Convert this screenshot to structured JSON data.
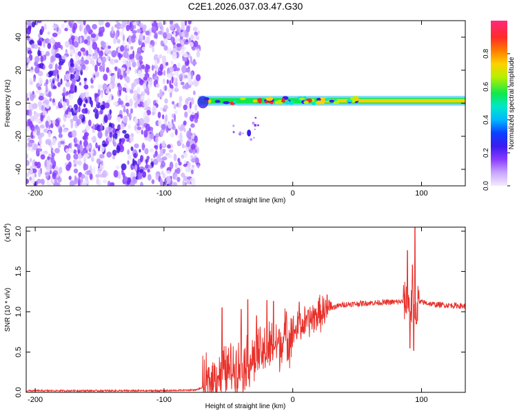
{
  "title": "C2E1.2026.037.03.47.G30",
  "chart_data": [
    {
      "type": "heatmap",
      "name": "spectrogram",
      "xlabel": "Height of straight line (km)",
      "ylabel": "Frequency (Hz)",
      "xlim": [
        -207,
        134
      ],
      "ylim": [
        -50,
        50
      ],
      "xticks": [
        -200,
        -100,
        0,
        100
      ],
      "xtick_labels": [
        "-200",
        "-100",
        "0",
        "100"
      ],
      "yticks": [
        -40,
        -20,
        0,
        20,
        40
      ],
      "ytick_labels": [
        "-40",
        "-20",
        "0",
        "20",
        "40"
      ],
      "colorbar": {
        "label": "Normalized spectral amplitude",
        "range": [
          0,
          1
        ],
        "ticks": [
          0.0,
          0.2,
          0.4,
          0.6,
          0.8
        ],
        "tick_labels": [
          "0.0",
          "0.2",
          "0.4",
          "0.6",
          "0.8"
        ],
        "colors": [
          "#f4ecff",
          "#c9a6ff",
          "#8a3cff",
          "#3a1cf0",
          "#0b40ff",
          "#00b8ff",
          "#00e8c8",
          "#10e84a",
          "#b8f000",
          "#ffd000",
          "#ff7a00",
          "#ff2a2a",
          "#ff2a7a"
        ]
      },
      "regions": {
        "noise_x_range": [
          -207,
          -73
        ],
        "signal_track_x_range": [
          -73,
          134
        ],
        "track_center_frequency": 1.5,
        "secondary_blob": {
          "x": -34,
          "frequency": -18
        }
      }
    },
    {
      "type": "line",
      "name": "snr",
      "xlabel": "Height of straight line (km)",
      "ylabel": "SNR (10 * v/v)",
      "scale_label": "(x10",
      "scale_exponent": "4",
      "xlim": [
        -207,
        134
      ],
      "ylim": [
        0,
        2.05
      ],
      "xticks": [
        -200,
        -100,
        0,
        100
      ],
      "xtick_labels": [
        "-200",
        "-100",
        "0",
        "100"
      ],
      "yticks": [
        0,
        0.5,
        1.0,
        1.5,
        2.0
      ],
      "ytick_labels": [
        "0.0",
        "0.5",
        "1.0",
        "1.5",
        "2.0"
      ],
      "color": "#e8302a",
      "series": [
        {
          "name": "SNR envelope",
          "x": [
            -207,
            -100,
            -75,
            -70,
            -65,
            -60,
            -50,
            -40,
            -30,
            -20,
            -10,
            0,
            10,
            20,
            30,
            40,
            60,
            80,
            88,
            92,
            95,
            100,
            110,
            134
          ],
          "y": [
            0.02,
            0.02,
            0.03,
            0.06,
            0.12,
            0.2,
            0.28,
            0.34,
            0.42,
            0.52,
            0.62,
            0.74,
            0.86,
            0.97,
            1.05,
            1.09,
            1.11,
            1.12,
            1.13,
            1.05,
            1.1,
            1.12,
            1.09,
            1.07
          ]
        },
        {
          "name": "spikes",
          "x": [
            -55,
            -40,
            -35,
            -28,
            -20,
            -15,
            -5,
            5,
            89,
            91,
            93,
            94,
            95,
            96
          ],
          "y": [
            1.05,
            1.03,
            1.15,
            0.95,
            1.14,
            1.13,
            1.0,
            1.12,
            1.76,
            0.55,
            1.58,
            0.52,
            2.05,
            0.85
          ]
        }
      ]
    }
  ]
}
